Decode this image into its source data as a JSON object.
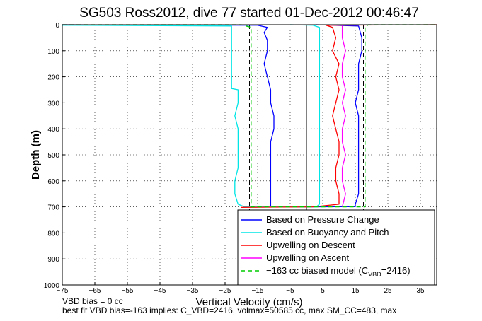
{
  "chart_data": {
    "type": "line",
    "title": "SG503 Ross2012, dive 77 started 01-Dec-2012 00:46:47",
    "xlabel": "Vertical Velocity (cm/s)",
    "ylabel": "Depth (m)",
    "xlim": [
      -75,
      40
    ],
    "ylim": [
      1000,
      0
    ],
    "y_reversed": true,
    "grid": true,
    "legend_position": "bottom-right",
    "xticks": [
      -75,
      -65,
      -55,
      -45,
      -35,
      -25,
      -15,
      -5,
      5,
      15,
      25,
      35
    ],
    "yticks": [
      0,
      100,
      200,
      300,
      400,
      500,
      600,
      700,
      800,
      900,
      1000
    ],
    "reference_lines": [
      {
        "style": "dashed",
        "x": -17.5
      },
      {
        "style": "dashed",
        "x": 17.5
      },
      {
        "style": "solid",
        "x": 0
      }
    ],
    "series": [
      {
        "name": "Based on Pressure Change",
        "color": "#0000ff",
        "points": [
          [
            -75,
            0
          ],
          [
            -15,
            2
          ],
          [
            -12,
            10
          ],
          [
            -13,
            30
          ],
          [
            -12,
            60
          ],
          [
            -12,
            100
          ],
          [
            -13,
            150
          ],
          [
            -12,
            200
          ],
          [
            -11,
            250
          ],
          [
            -11,
            300
          ],
          [
            -10,
            350
          ],
          [
            -10,
            400
          ],
          [
            -11,
            450
          ],
          [
            -11,
            500
          ],
          [
            -11,
            550
          ],
          [
            -11,
            600
          ],
          [
            -11,
            650
          ],
          [
            -11,
            700
          ],
          [
            0,
            700
          ],
          [
            15,
            699
          ],
          [
            15,
            690
          ],
          [
            16,
            650
          ],
          [
            16,
            600
          ],
          [
            16,
            550
          ],
          [
            16,
            500
          ],
          [
            16,
            450
          ],
          [
            16,
            400
          ],
          [
            16,
            350
          ],
          [
            15,
            300
          ],
          [
            16,
            250
          ],
          [
            16,
            200
          ],
          [
            16,
            150
          ],
          [
            17,
            100
          ],
          [
            17,
            50
          ],
          [
            16,
            5
          ],
          [
            3,
            0
          ]
        ]
      },
      {
        "name": "Based on Buoyancy and Pitch",
        "color": "#00e5e5",
        "points": [
          [
            -75,
            2
          ],
          [
            -23,
            5
          ],
          [
            -23,
            50
          ],
          [
            -23,
            100
          ],
          [
            -23,
            150
          ],
          [
            -23,
            200
          ],
          [
            -23,
            245
          ],
          [
            -21,
            250
          ],
          [
            -21,
            300
          ],
          [
            -22,
            350
          ],
          [
            -21,
            400
          ],
          [
            -21,
            450
          ],
          [
            -21,
            500
          ],
          [
            -21,
            550
          ],
          [
            -22,
            600
          ],
          [
            -22,
            650
          ],
          [
            -21,
            690
          ],
          [
            -19,
            700
          ],
          [
            3,
            700
          ],
          [
            4,
            690
          ],
          [
            4,
            600
          ],
          [
            4,
            500
          ],
          [
            4,
            400
          ],
          [
            4,
            300
          ],
          [
            4,
            200
          ],
          [
            4,
            100
          ],
          [
            4,
            10
          ],
          [
            2,
            2
          ],
          [
            -5,
            0
          ]
        ]
      },
      {
        "name": "Upwelling on Descent",
        "color": "#ff0000",
        "points": [
          [
            40,
            0
          ],
          [
            6,
            2
          ],
          [
            8,
            10
          ],
          [
            9,
            50
          ],
          [
            8,
            100
          ],
          [
            10,
            150
          ],
          [
            9,
            200
          ],
          [
            10,
            250
          ],
          [
            9,
            300
          ],
          [
            8,
            350
          ],
          [
            9,
            400
          ],
          [
            10,
            450
          ],
          [
            10,
            500
          ],
          [
            9,
            550
          ],
          [
            9,
            600
          ],
          [
            10,
            650
          ],
          [
            10,
            690
          ],
          [
            2,
            700
          ],
          [
            -20,
            702
          ]
        ]
      },
      {
        "name": "Upwelling on Ascent",
        "color": "#ff00ff",
        "points": [
          [
            11,
            700
          ],
          [
            12,
            650
          ],
          [
            11,
            600
          ],
          [
            11,
            550
          ],
          [
            12,
            500
          ],
          [
            11,
            450
          ],
          [
            11,
            400
          ],
          [
            12,
            350
          ],
          [
            11,
            300
          ],
          [
            12,
            250
          ],
          [
            11,
            200
          ],
          [
            11,
            150
          ],
          [
            12,
            100
          ],
          [
            11,
            50
          ],
          [
            11,
            5
          ]
        ]
      },
      {
        "name": "−163 cc biased model",
        "color": "#00cc00",
        "dashed": true,
        "points": [
          [
            -75,
            0
          ],
          [
            -20,
            0
          ],
          [
            -17,
            10
          ],
          [
            -17,
            300
          ],
          [
            -17,
            690
          ],
          [
            -17,
            700
          ],
          [
            18,
            700
          ],
          [
            18,
            10
          ],
          [
            19,
            0
          ],
          [
            40,
            0
          ]
        ]
      }
    ]
  },
  "legend": {
    "entries": [
      {
        "label": "Based on Pressure Change",
        "color": "#0000ff",
        "dashed": false
      },
      {
        "label": "Based on Buoyancy and Pitch",
        "color": "#00e5e5",
        "dashed": false
      },
      {
        "label": "Upwelling on Descent",
        "color": "#ff0000",
        "dashed": false
      },
      {
        "label": "Upwelling on Ascent",
        "color": "#ff00ff",
        "dashed": false
      }
    ],
    "model_entry": {
      "prefix": "−163 cc biased model (C",
      "subscript": "VBD",
      "suffix": "=2416)",
      "color": "#00cc00"
    }
  },
  "notes": {
    "line1": "VBD bias = 0 cc",
    "line2": "best fit VBD bias=-163 implies: C_VBD=2416, volmax=50585 cc, max SM_CC=483, max"
  }
}
